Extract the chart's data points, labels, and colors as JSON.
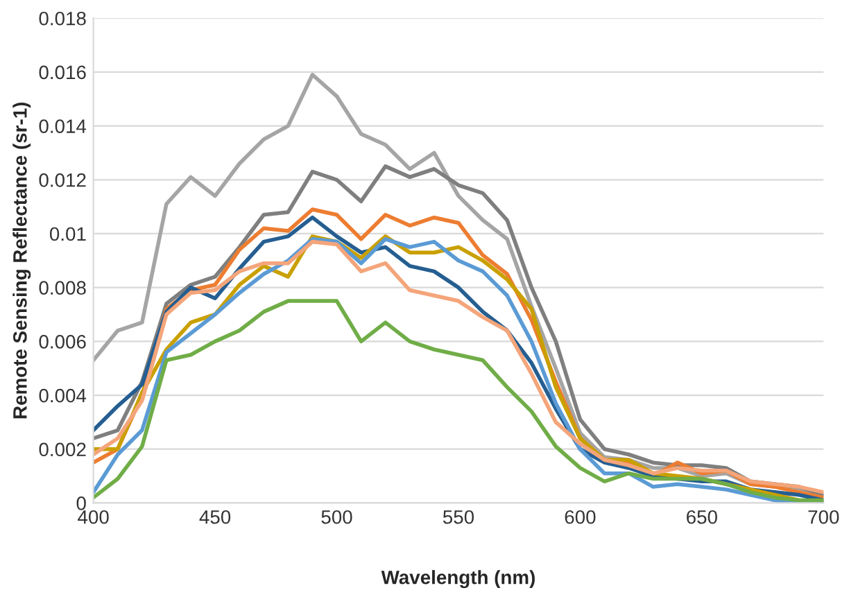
{
  "chart_data": {
    "type": "line",
    "xlabel": "Wavelength (nm)",
    "ylabel": "Remote Sensing Reflectance (sr-1)",
    "x": [
      400,
      410,
      420,
      430,
      440,
      450,
      460,
      470,
      480,
      490,
      500,
      510,
      520,
      530,
      540,
      550,
      560,
      570,
      580,
      590,
      600,
      610,
      620,
      630,
      640,
      650,
      660,
      670,
      680,
      690,
      700
    ],
    "series": [
      {
        "color": "#a5a5a5",
        "values": [
          0.0053,
          0.0064,
          0.0067,
          0.0111,
          0.0121,
          0.0114,
          0.0126,
          0.0135,
          0.014,
          0.0159,
          0.0151,
          0.0137,
          0.0133,
          0.0124,
          0.013,
          0.0114,
          0.0105,
          0.0098,
          0.0073,
          0.005,
          0.0026,
          0.0017,
          0.0016,
          0.0013,
          0.0013,
          0.001,
          0.0011,
          0.0007,
          0.0006,
          0.0005,
          0.0003
        ]
      },
      {
        "color": "#7f7f7f",
        "values": [
          0.0024,
          0.0027,
          0.0045,
          0.0074,
          0.0081,
          0.0084,
          0.0095,
          0.0107,
          0.0108,
          0.0123,
          0.012,
          0.0112,
          0.0125,
          0.0121,
          0.0124,
          0.0118,
          0.0115,
          0.0105,
          0.008,
          0.006,
          0.0031,
          0.002,
          0.0018,
          0.0015,
          0.0014,
          0.0014,
          0.0013,
          0.0008,
          0.0007,
          0.0006,
          0.0003
        ]
      },
      {
        "color": "#ed7d31",
        "values": [
          0.0015,
          0.002,
          0.004,
          0.0072,
          0.0079,
          0.0081,
          0.0094,
          0.0102,
          0.0101,
          0.0109,
          0.0107,
          0.0098,
          0.0107,
          0.0103,
          0.0106,
          0.0104,
          0.0092,
          0.0085,
          0.0068,
          0.0045,
          0.0024,
          0.0016,
          0.0015,
          0.001,
          0.0015,
          0.0011,
          0.0012,
          0.0007,
          0.0006,
          0.0004,
          0.0002
        ]
      },
      {
        "color": "#255e91",
        "values": [
          0.0027,
          0.0036,
          0.0044,
          0.0071,
          0.008,
          0.0076,
          0.0087,
          0.0097,
          0.0099,
          0.0106,
          0.0099,
          0.0093,
          0.0095,
          0.0088,
          0.0086,
          0.008,
          0.0071,
          0.0064,
          0.0052,
          0.0035,
          0.002,
          0.0015,
          0.0013,
          0.001,
          0.0009,
          0.0008,
          0.0008,
          0.0005,
          0.0004,
          0.0003,
          0.0001
        ]
      },
      {
        "color": "#c9a000",
        "values": [
          0.002,
          0.002,
          0.0041,
          0.0057,
          0.0067,
          0.007,
          0.0081,
          0.0088,
          0.0084,
          0.0099,
          0.0097,
          0.0091,
          0.0099,
          0.0093,
          0.0093,
          0.0095,
          0.009,
          0.0083,
          0.0072,
          0.0043,
          0.0024,
          0.0016,
          0.0016,
          0.0011,
          0.001,
          0.0009,
          0.0007,
          0.0005,
          0.0003,
          0.0001,
          0.0
        ]
      },
      {
        "color": "#5b9bd5",
        "values": [
          0.0004,
          0.0018,
          0.0027,
          0.0056,
          0.0063,
          0.007,
          0.0078,
          0.0085,
          0.009,
          0.0098,
          0.0097,
          0.0089,
          0.0098,
          0.0095,
          0.0097,
          0.009,
          0.0086,
          0.0077,
          0.006,
          0.0037,
          0.002,
          0.0011,
          0.0011,
          0.0006,
          0.0007,
          0.0006,
          0.0005,
          0.0003,
          0.0001,
          0.0,
          0.0
        ]
      },
      {
        "color": "#f4a57a",
        "values": [
          0.0018,
          0.0024,
          0.0038,
          0.007,
          0.0078,
          0.0079,
          0.0086,
          0.0089,
          0.0089,
          0.0097,
          0.0096,
          0.0086,
          0.0089,
          0.0079,
          0.0077,
          0.0075,
          0.0069,
          0.0064,
          0.0048,
          0.003,
          0.0022,
          0.0016,
          0.0014,
          0.0011,
          0.0013,
          0.0012,
          0.0012,
          0.0008,
          0.0007,
          0.0006,
          0.0004
        ]
      },
      {
        "color": "#70ad47",
        "values": [
          0.0002,
          0.0009,
          0.0021,
          0.0053,
          0.0055,
          0.006,
          0.0064,
          0.0071,
          0.0075,
          0.0075,
          0.0075,
          0.006,
          0.0067,
          0.006,
          0.0057,
          0.0055,
          0.0053,
          0.0043,
          0.0034,
          0.0021,
          0.0013,
          0.0008,
          0.0011,
          0.0009,
          0.0009,
          0.0009,
          0.0007,
          0.0004,
          0.0002,
          0.0001,
          0.0001
        ]
      }
    ],
    "xlim": [
      400,
      700
    ],
    "xticks": [
      400,
      450,
      500,
      550,
      600,
      650,
      700
    ],
    "ylim": [
      0,
      0.018
    ],
    "yticks": [
      0,
      0.002,
      0.004,
      0.006,
      0.008,
      0.01,
      0.012,
      0.014,
      0.016,
      0.018
    ],
    "grid": "y",
    "marker": "none",
    "line_style": "solid"
  }
}
